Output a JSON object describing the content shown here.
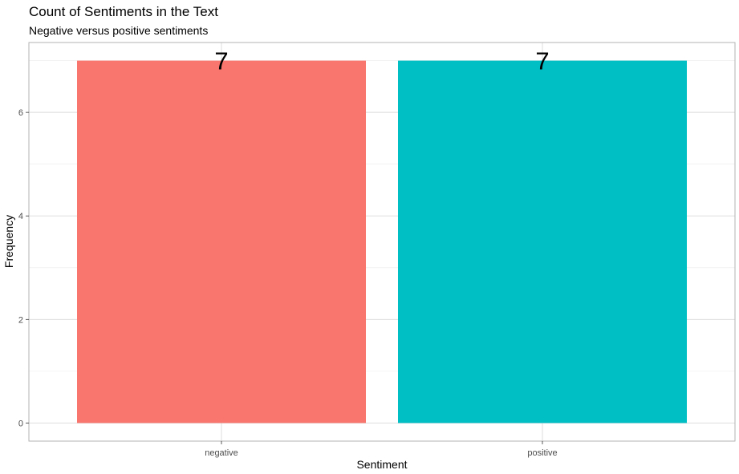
{
  "chart_data": {
    "type": "bar",
    "title": "Count of Sentiments in the Text",
    "subtitle": "Negative versus positive sentiments",
    "xlabel": "Sentiment",
    "ylabel": "Frequency",
    "categories": [
      "negative",
      "positive"
    ],
    "values": [
      7,
      7
    ],
    "data_labels": [
      "7",
      "7"
    ],
    "colors": [
      "#F8766D",
      "#00BFC4"
    ],
    "ylim": [
      -0.35,
      7.35
    ],
    "yticks": [
      0,
      2,
      4,
      6
    ],
    "ytick_labels": [
      "0",
      "2",
      "4",
      "6"
    ],
    "grid": true,
    "legend": "none"
  }
}
